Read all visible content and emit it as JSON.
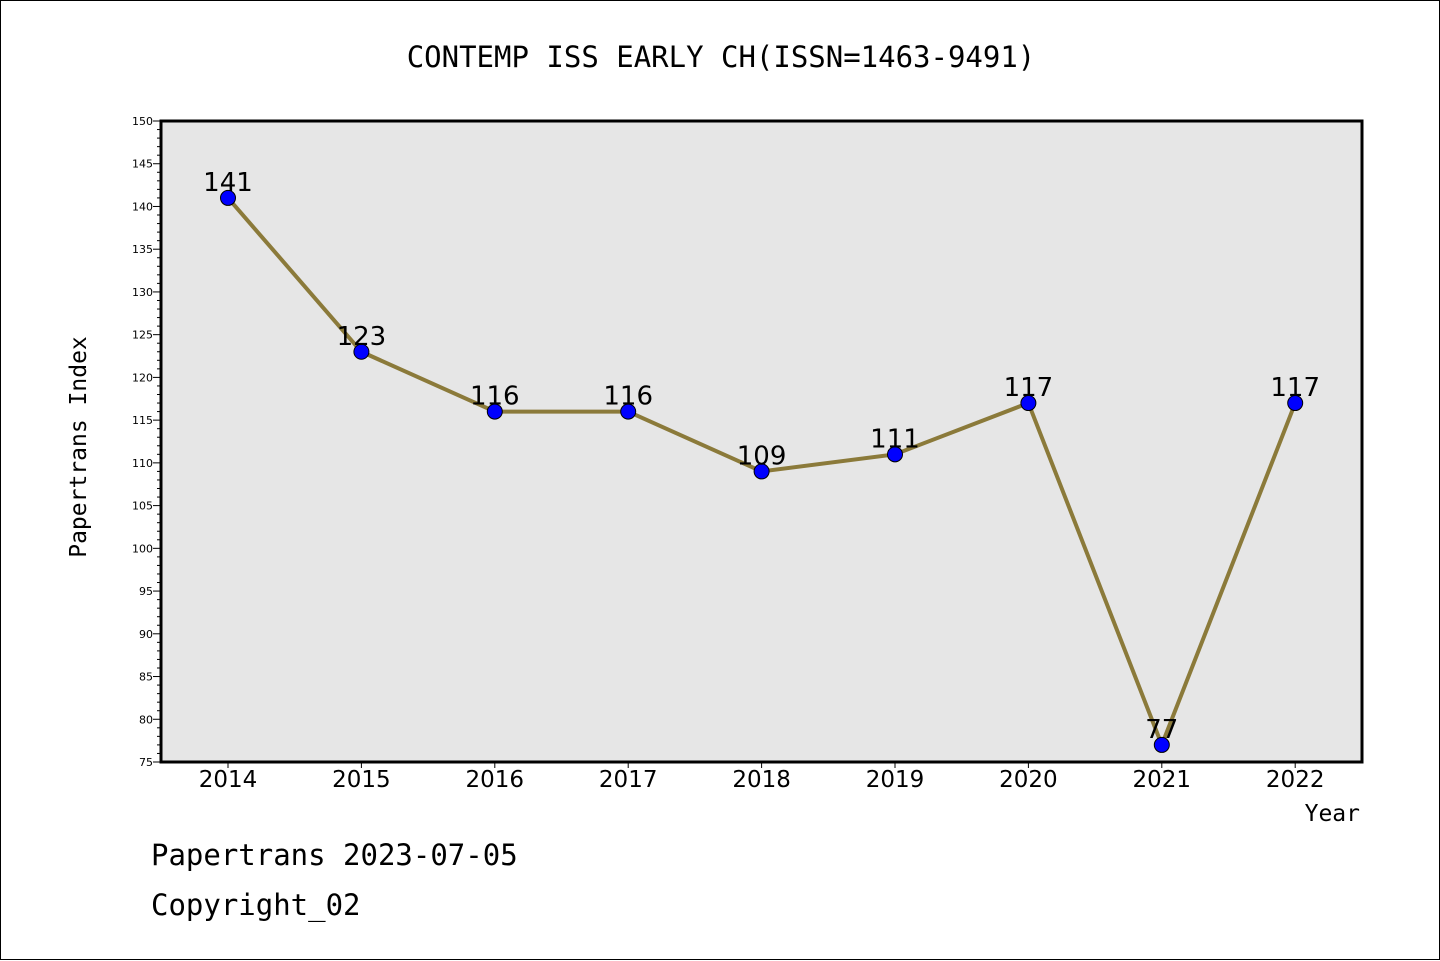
{
  "chart_data": {
    "type": "line",
    "title": "CONTEMP ISS EARLY CH(ISSN=1463-9491)",
    "xlabel": "Year",
    "ylabel": "Papertrans Index",
    "categories": [
      "2014",
      "2015",
      "2016",
      "2017",
      "2018",
      "2019",
      "2020",
      "2021",
      "2022"
    ],
    "series": [
      {
        "values": [
          141,
          123,
          116,
          116,
          109,
          111,
          117,
          77,
          117
        ]
      }
    ],
    "ylim": [
      75,
      150
    ],
    "yticks": [
      75,
      80,
      85,
      90,
      95,
      100,
      105,
      110,
      115,
      120,
      125,
      130,
      135,
      140,
      145,
      150
    ],
    "data_labels": true,
    "grid": false,
    "colors": {
      "line": "#8b7a3a",
      "marker": "#0000ff",
      "plot_background": "#e6e6e6"
    }
  },
  "footer": {
    "line1": "Papertrans 2023-07-05",
    "line2": "Copyright_02"
  }
}
